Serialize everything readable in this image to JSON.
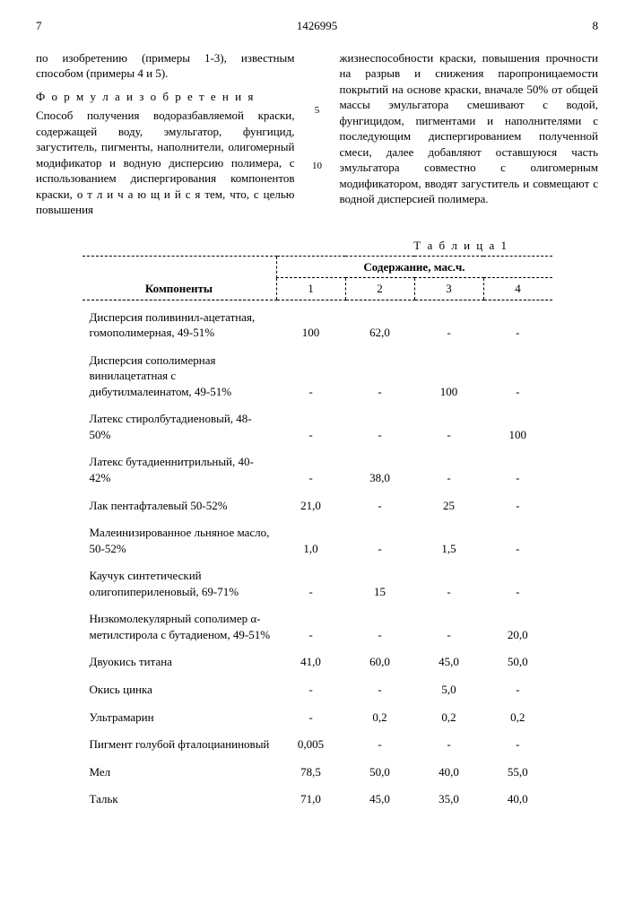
{
  "header": {
    "page_left": "7",
    "doc_number": "1426995",
    "page_right": "8"
  },
  "left_col": {
    "p1": "по изобретению (примеры 1-3), известным способом (примеры 4 и 5).",
    "formula_title": "Ф о р м у л а   и з о б р е т е н и я",
    "p2": "Способ получения водоразбавляемой краски, содержащей воду, эмульгатор, фунгицид, загуститель, пигменты, наполнители, олигомерный модификатор и водную дисперсию полимера, с использованием диспергирования компонентов краски, о т л и ч а ю щ и й с я  тем, что, с целью повышения"
  },
  "right_col": {
    "p1": "жизнеспособности краски, повышения прочности на разрыв и снижения паропроницаемости покрытий на основе краски, вначале 50% от общей массы эмульгатора смешивают с водой, фунгицидом, пигментами и наполнителями с последующим диспергированием полученной смеси, далее добавляют оставшуюся часть эмульгатора совместно с олигомерным модификатором, вводят загуститель и совмещают с водной дисперсией полимера."
  },
  "markers": {
    "m5": "5",
    "m10": "10"
  },
  "table": {
    "title": "Т а б л и ц а 1",
    "head_components": "Компоненты",
    "head_content": "Содержание, мас.ч.",
    "col_labels": [
      "1",
      "2",
      "3",
      "4"
    ],
    "rows": [
      {
        "label": "Дисперсия поливинил-ацетатная, гомополимерная, 49-51%",
        "v": [
          "100",
          "62,0",
          "-",
          "-"
        ]
      },
      {
        "label": "Дисперсия сополимерная винилацетатная с дибутилмалеинатом, 49-51%",
        "v": [
          "-",
          "-",
          "100",
          "-"
        ]
      },
      {
        "label": "Латекс стиролбутадиеновый, 48-50%",
        "v": [
          "-",
          "-",
          "-",
          "100"
        ]
      },
      {
        "label": "Латекс бутадиеннитрильный, 40-42%",
        "v": [
          "-",
          "38,0",
          "-",
          "-"
        ]
      },
      {
        "label": "Лак пентафталевый 50-52%",
        "v": [
          "21,0",
          "-",
          "25",
          "-"
        ]
      },
      {
        "label": "Малеинизированное льняное масло, 50-52%",
        "v": [
          "1,0",
          "-",
          "1,5",
          "-"
        ]
      },
      {
        "label": "Каучук синтетический олигопипериленовый, 69-71%",
        "v": [
          "-",
          "15",
          "-",
          "-"
        ]
      },
      {
        "label": "Низкомолекулярный сополимер α-метилстирола с бутадиеном, 49-51%",
        "v": [
          "-",
          "-",
          "-",
          "20,0"
        ]
      },
      {
        "label": "Двуокись титана",
        "v": [
          "41,0",
          "60,0",
          "45,0",
          "50,0"
        ]
      },
      {
        "label": "Окись цинка",
        "v": [
          "-",
          "-",
          "5,0",
          "-"
        ]
      },
      {
        "label": "Ультрамарин",
        "v": [
          "-",
          "0,2",
          "0,2",
          "0,2"
        ]
      },
      {
        "label": "Пигмент голубой фталоцианиновый",
        "v": [
          "0,005",
          "-",
          "-",
          "-"
        ]
      },
      {
        "label": "Мел",
        "v": [
          "78,5",
          "50,0",
          "40,0",
          "55,0"
        ]
      },
      {
        "label": "Тальк",
        "v": [
          "71,0",
          "45,0",
          "35,0",
          "40,0"
        ]
      }
    ]
  }
}
